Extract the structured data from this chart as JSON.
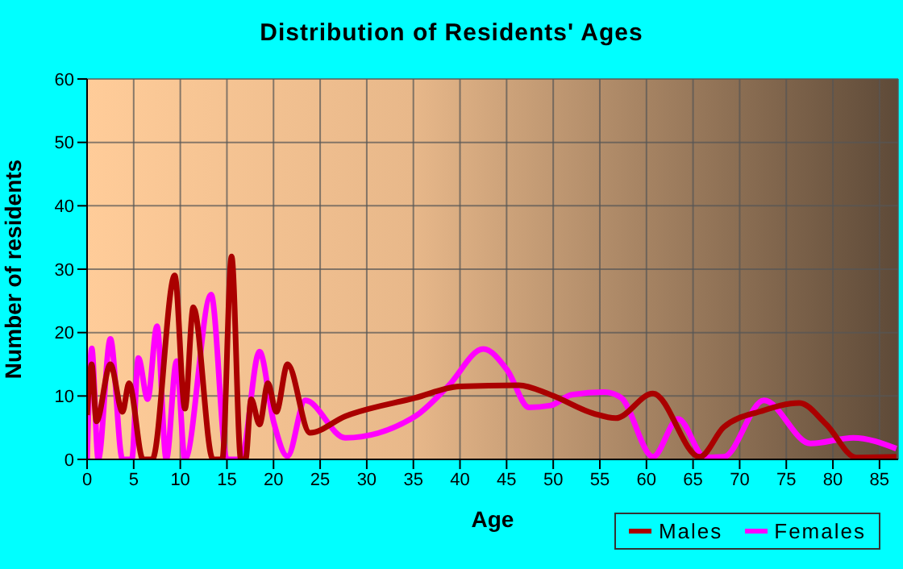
{
  "chart_data": {
    "type": "line",
    "title": "Distribution of Residents' Ages",
    "xlabel": "Age",
    "ylabel": "Number of residents",
    "xlim": [
      0,
      87
    ],
    "xticks": [
      0,
      5,
      10,
      15,
      20,
      25,
      30,
      35,
      40,
      45,
      50,
      55,
      60,
      65,
      70,
      75,
      80,
      85
    ],
    "ylim": [
      0,
      60
    ],
    "yticks": [
      0,
      10,
      20,
      30,
      40,
      50,
      60
    ],
    "grid": true,
    "legend": "bottom right",
    "marker": "none",
    "line_style": "solid",
    "series": [
      {
        "name": "Males",
        "color": "#aa0000",
        "x": [
          0,
          0.5,
          1,
          2.5,
          3.8,
          4.5,
          6,
          7,
          9.4,
          10.5,
          11.4,
          13.5,
          14.5,
          15.5,
          16.5,
          17,
          17.6,
          18.5,
          19.4,
          20.3,
          21.5,
          23.9,
          27.7,
          35.2,
          39.9,
          46.3,
          49.7,
          54.4,
          56.7,
          60.7,
          65.7,
          68.3,
          72.3,
          76.4,
          79.3,
          82.5,
          86.8
        ],
        "values": [
          7,
          15,
          6,
          15,
          7.5,
          12,
          0,
          0,
          29,
          8,
          24,
          0,
          0,
          32,
          0,
          0,
          9.5,
          5.5,
          12,
          7.5,
          15,
          4.2,
          6.8,
          9.7,
          11.5,
          11.7,
          10.2,
          7.2,
          6.5,
          10.4,
          0.4,
          5.1,
          7.6,
          8.9,
          5.5,
          0.3,
          0.4
        ]
      },
      {
        "name": "Females",
        "color": "#ff00ff",
        "x": [
          0,
          0.5,
          1.2,
          2.5,
          3.8,
          4.8,
          5.5,
          6.5,
          7.5,
          8.5,
          9.6,
          10.5,
          13.3,
          15,
          16.5,
          18.5,
          20,
          21.5,
          23.4,
          27.7,
          35.2,
          38.7,
          42.5,
          45.1,
          47.4,
          49.7,
          52,
          55.5,
          57.3,
          60.7,
          63.4,
          66.3,
          68.3,
          72.6,
          77.6,
          82.2,
          86.8
        ],
        "values": [
          0,
          17.5,
          0,
          19,
          0,
          0,
          16,
          9.5,
          21,
          0,
          15.5,
          0,
          26,
          0,
          0,
          17,
          6,
          0.5,
          9.3,
          3.4,
          6.8,
          11.5,
          17.4,
          14,
          8.2,
          8.5,
          10.2,
          10.6,
          9.7,
          0.4,
          6.4,
          0.3,
          0.4,
          9.3,
          2.5,
          3.4,
          1.7
        ]
      }
    ]
  }
}
